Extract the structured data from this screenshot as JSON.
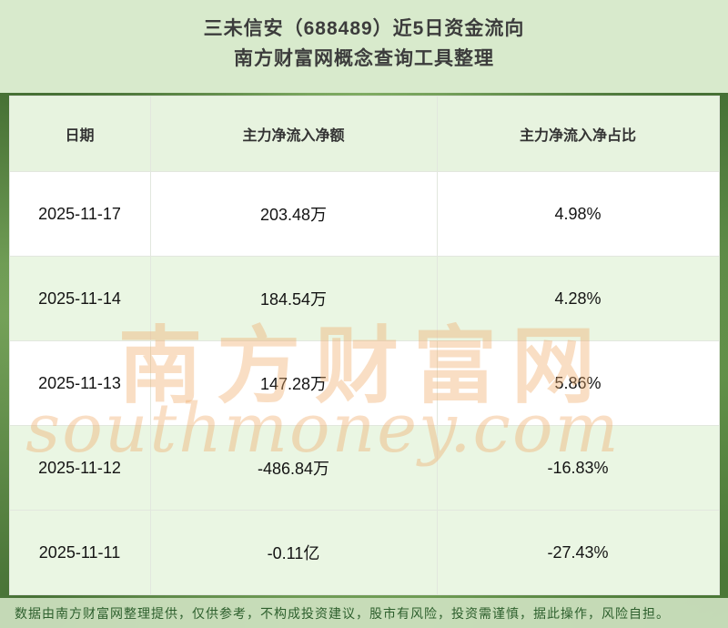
{
  "title": {
    "line1": "三未信安（688489）近5日资金流向",
    "line2": "南方财富网概念查询工具整理"
  },
  "chart_data": {
    "type": "table",
    "title": "三未信安（688489）近5日资金流向",
    "subtitle": "南方财富网概念查询工具整理",
    "columns": [
      "日期",
      "主力净流入净额",
      "主力净流入净占比"
    ],
    "rows": [
      [
        "2025-11-17",
        "203.48万",
        "4.98%"
      ],
      [
        "2025-11-14",
        "184.54万",
        "4.28%"
      ],
      [
        "2025-11-13",
        "147.28万",
        "5.86%"
      ],
      [
        "2025-11-12",
        "-486.84万",
        "-16.83%"
      ],
      [
        "2025-11-11",
        "-0.11亿",
        "-27.43%"
      ]
    ]
  },
  "watermark": {
    "cn": "南方财富网",
    "en": "southmoney.com"
  },
  "footer": {
    "text": "数据由南方财富网整理提供，仅供参考，不构成投资建议，股市有风险，投资需谨慎，据此操作，风险自担。"
  },
  "colors": {
    "page_green": "#74a157",
    "banner_green": "#d8eacc",
    "header_row_green": "#e7f3df",
    "alt_row_green": "#eaf6e3",
    "watermark_orange": "#f0ad6c",
    "footer_text_green": "#2d5f2d"
  }
}
